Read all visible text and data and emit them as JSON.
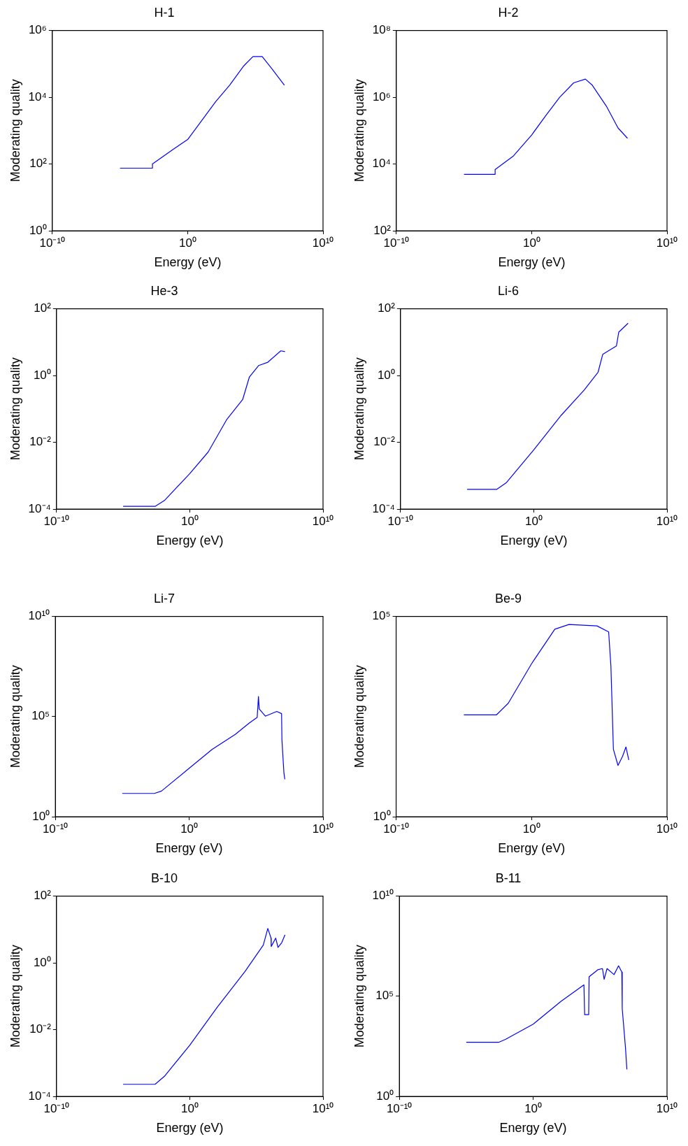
{
  "chart_data": [
    {
      "type": "line",
      "title": "H-1",
      "xlabel": "Energy (eV)",
      "ylabel": "Moderating quality",
      "log": "xy",
      "marker": "none",
      "color": "#0000ff",
      "x": [
        1e-05,
        0.0025,
        0.0025,
        0.09,
        1,
        11,
        117,
        1260,
        14000.0,
        67000.0,
        320000.0,
        1600000.0,
        14000000.0
      ],
      "values": [
        75,
        75,
        100,
        280,
        540,
        2000,
        7400,
        23000,
        87000,
        166000,
        166000,
        73000,
        23000
      ],
      "xlim": [
        1e-10,
        10000000000.0
      ],
      "xticks": [
        {
          "value": 1e-10,
          "label": "10⁻¹⁰"
        },
        {
          "value": 1,
          "label": "10⁰"
        },
        {
          "value": 10000000000.0,
          "label": "10¹⁰"
        }
      ],
      "ylim": [
        1,
        1000000.0
      ],
      "yticks": [
        {
          "value": 1,
          "label": "10⁰"
        },
        {
          "value": 100,
          "label": "10²"
        },
        {
          "value": 10000.0,
          "label": "10⁴"
        },
        {
          "value": 1000000.0,
          "label": "10⁶"
        }
      ]
    },
    {
      "type": "line",
      "title": "H-2",
      "xlabel": "Energy (eV)",
      "ylabel": "Moderating quality",
      "log": "xy",
      "marker": "none",
      "color": "#0000ff",
      "x": [
        1e-05,
        0.002,
        0.002,
        0.042,
        1,
        11,
        117,
        1260,
        9300,
        30000.0,
        330000.0,
        2400000.0,
        12000000.0
      ],
      "values": [
        4900,
        4900,
        6800,
        17000,
        74000,
        280000,
        1000000,
        2700000,
        3500000,
        2300000,
        540000,
        120000,
        59000
      ],
      "xlim": [
        1e-10,
        10000000000.0
      ],
      "xticks": [
        {
          "value": 1e-10,
          "label": "10⁻¹⁰"
        },
        {
          "value": 1,
          "label": "10⁰"
        },
        {
          "value": 10000000000.0,
          "label": "10¹⁰"
        }
      ],
      "ylim": [
        100,
        100000000.0
      ],
      "yticks": [
        {
          "value": 100,
          "label": "10²"
        },
        {
          "value": 10000.0,
          "label": "10⁴"
        },
        {
          "value": 1000000.0,
          "label": "10⁶"
        },
        {
          "value": 100000000.0,
          "label": "10⁸"
        }
      ]
    },
    {
      "type": "line",
      "title": "He-3",
      "xlabel": "Energy (eV)",
      "ylabel": "Moderating quality",
      "log": "xy",
      "marker": "none",
      "color": "#0000ff",
      "x": [
        1e-05,
        0.0025,
        0.0126,
        1,
        24,
        575,
        9300,
        30000.0,
        150000.0,
        720000.0,
        6800000.0,
        14000000.0
      ],
      "values": [
        0.00012,
        0.00012,
        0.00018,
        0.00115,
        0.0051,
        0.047,
        0.19,
        0.91,
        2.0,
        2.5,
        5.5,
        5.2
      ],
      "xlim": [
        1e-10,
        10000000000.0
      ],
      "xticks": [
        {
          "value": 1e-10,
          "label": "10⁻¹⁰"
        },
        {
          "value": 1,
          "label": "10⁰"
        },
        {
          "value": 10000000000.0,
          "label": "10¹⁰"
        }
      ],
      "ylim": [
        0.0001,
        100
      ],
      "yticks": [
        {
          "value": 0.0001,
          "label": "10⁻⁴"
        },
        {
          "value": 0.01,
          "label": "10⁻²"
        },
        {
          "value": 1,
          "label": "10⁰"
        },
        {
          "value": 100,
          "label": "10²"
        }
      ]
    },
    {
      "type": "line",
      "title": "Li-6",
      "xlabel": "Energy (eV)",
      "ylabel": "Moderating quality",
      "log": "xy",
      "marker": "none",
      "color": "#0000ff",
      "x": [
        1e-05,
        0.0017,
        0.0085,
        1,
        117,
        6200,
        67000.0,
        150000.0,
        1600000.0,
        2400000.0,
        12000000.0
      ],
      "values": [
        0.00039,
        0.00039,
        0.00061,
        0.0059,
        0.065,
        0.37,
        1.26,
        4.3,
        7.7,
        20,
        37
      ],
      "xlim": [
        1e-10,
        10000000000.0
      ],
      "xticks": [
        {
          "value": 1e-10,
          "label": "10⁻¹⁰"
        },
        {
          "value": 1,
          "label": "10⁰"
        },
        {
          "value": 10000000000.0,
          "label": "10¹⁰"
        }
      ],
      "ylim": [
        0.0001,
        100
      ],
      "yticks": [
        {
          "value": 0.0001,
          "label": "10⁻⁴"
        },
        {
          "value": 0.01,
          "label": "10⁻²"
        },
        {
          "value": 1,
          "label": "10⁰"
        },
        {
          "value": 100,
          "label": "10²"
        }
      ]
    },
    {
      "type": "line",
      "title": "Li-7",
      "xlabel": "Energy (eV)",
      "ylabel": "Moderating quality",
      "log": "xy",
      "marker": "none",
      "color": "#0000ff",
      "x": [
        1e-05,
        0.0025,
        0.0085,
        1,
        52,
        2800,
        30000.0,
        120000.0,
        150000.0,
        170000.0,
        490000.0,
        3500000.0,
        8000000.0,
        8500000.0,
        12000000.0,
        14000000.0
      ],
      "values": [
        14.5,
        14.5,
        19,
        260,
        2300,
        13000,
        47000,
        90000,
        1000000,
        240000,
        105000,
        180000,
        140000,
        6900,
        150,
        74
      ],
      "xlim": [
        1e-10,
        10000000000.0
      ],
      "xticks": [
        {
          "value": 1e-10,
          "label": "10⁻¹⁰"
        },
        {
          "value": 1,
          "label": "10⁰"
        },
        {
          "value": 10000000000.0,
          "label": "10¹⁰"
        }
      ],
      "ylim": [
        1,
        10000000000.0
      ],
      "yticks": [
        {
          "value": 1,
          "label": "10⁰"
        },
        {
          "value": 100000.0,
          "label": "10⁵"
        },
        {
          "value": 10000000000.0,
          "label": "10¹⁰"
        }
      ]
    },
    {
      "type": "line",
      "title": "Be-9",
      "xlabel": "Energy (eV)",
      "ylabel": "Moderating quality",
      "log": "xy",
      "marker": "none",
      "color": "#0000ff",
      "x": [
        1e-05,
        0.0026,
        0.019,
        1,
        52,
        575,
        67000.0,
        490000.0,
        720000.0,
        1100000.0,
        2400000.0,
        5200000.0,
        9300000.0,
        15000000.0
      ],
      "values": [
        350,
        350,
        680,
        6600,
        48000,
        63000,
        58000,
        41000,
        5700,
        48,
        19,
        32,
        55,
        26
      ],
      "xlim": [
        1e-10,
        10000000000.0
      ],
      "xticks": [
        {
          "value": 1e-10,
          "label": "10⁻¹⁰"
        },
        {
          "value": 1,
          "label": "10⁰"
        },
        {
          "value": 10000000000.0,
          "label": "10¹⁰"
        }
      ],
      "ylim": [
        1,
        100000.0
      ],
      "yticks": [
        {
          "value": 1,
          "label": "10⁰"
        },
        {
          "value": 100000.0,
          "label": "10⁵"
        }
      ]
    },
    {
      "type": "line",
      "title": "B-10",
      "xlabel": "Energy (eV)",
      "ylabel": "Moderating quality",
      "log": "xy",
      "marker": "none",
      "color": "#0000ff",
      "x": [
        1e-05,
        0.0025,
        0.0126,
        1,
        117,
        14000.0,
        330000.0,
        720000.0,
        1260000.0,
        1300000.0,
        2800000.0,
        4200000.0,
        7900000.0,
        14000000.0
      ],
      "values": [
        0.00023,
        0.00023,
        0.0004,
        0.0034,
        0.047,
        0.55,
        3.4,
        10.7,
        5.5,
        3.1,
        5.5,
        2.9,
        4,
        6.9
      ],
      "xlim": [
        1e-10,
        10000000000.0
      ],
      "xticks": [
        {
          "value": 1e-10,
          "label": "10⁻¹⁰"
        },
        {
          "value": 1,
          "label": "10⁰"
        },
        {
          "value": 10000000000.0,
          "label": "10¹⁰"
        }
      ],
      "ylim": [
        0.0001,
        100
      ],
      "yticks": [
        {
          "value": 0.0001,
          "label": "10⁻⁴"
        },
        {
          "value": 0.01,
          "label": "10⁻²"
        },
        {
          "value": 1,
          "label": "10⁰"
        },
        {
          "value": 100,
          "label": "10²"
        }
      ]
    },
    {
      "type": "line",
      "title": "B-11",
      "xlabel": "Energy (eV)",
      "ylabel": "Moderating quality",
      "log": "xy",
      "marker": "none",
      "color": "#0000ff",
      "x": [
        1e-05,
        0.0026,
        0.0085,
        1,
        117,
        6200,
        7000,
        14000.0,
        15000.0,
        67000.0,
        150000.0,
        200000.0,
        330000.0,
        1100000.0,
        2400000.0,
        4200000.0,
        4500000.0,
        7900000.0,
        10000000.0
      ],
      "values": [
        500,
        500,
        700,
        4000,
        55000,
        370000,
        12000,
        12000,
        930000,
        2100000,
        2400000,
        700000,
        2400000,
        1200000,
        3300000,
        1600000,
        24000,
        260,
        22
      ],
      "xlim": [
        1e-10,
        10000000000.0
      ],
      "xticks": [
        {
          "value": 1e-10,
          "label": "10⁻¹⁰"
        },
        {
          "value": 1,
          "label": "10⁰"
        },
        {
          "value": 10000000000.0,
          "label": "10¹⁰"
        }
      ],
      "ylim": [
        1,
        10000000000.0
      ],
      "yticks": [
        {
          "value": 1,
          "label": "10⁰"
        },
        {
          "value": 100000.0,
          "label": "10⁵"
        },
        {
          "value": 10000000000.0,
          "label": "10¹⁰"
        }
      ]
    }
  ]
}
